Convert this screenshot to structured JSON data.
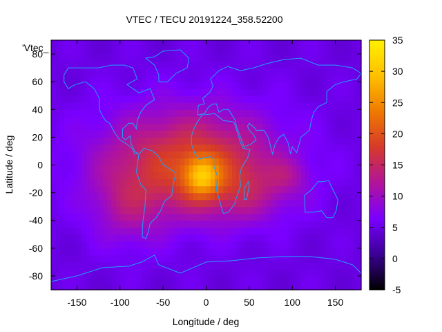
{
  "chart_data": {
    "type": "heatmap",
    "title": "VTEC / TECU 20191224_358.52200",
    "xlabel": "Longitude / deg",
    "ylabel": "Latitude / deg",
    "xlim": [
      -180,
      180
    ],
    "ylim": [
      -90,
      90
    ],
    "x_ticks": [
      -150,
      -100,
      -50,
      0,
      50,
      100,
      150
    ],
    "y_ticks": [
      -80,
      -60,
      -40,
      -20,
      0,
      20,
      40,
      60,
      80
    ],
    "colorbar": {
      "min": -5,
      "max": 35,
      "ticks": [
        -5,
        0,
        5,
        10,
        15,
        20,
        25,
        30,
        35
      ],
      "palette": [
        "#000000",
        "#3b0095",
        "#7a00ff",
        "#b2149a",
        "#d63a2a",
        "#ef7a00",
        "#ffc000",
        "#fff000"
      ]
    },
    "key_label": "'Vtec_",
    "background_value": 5,
    "peak": {
      "lon": -5,
      "lat": -8,
      "value": 33
    },
    "tec_blobs": [
      {
        "lon": -5,
        "lat": -8,
        "sigma_lon": 14,
        "sigma_lat": 10,
        "amp": 12
      },
      {
        "lon": -20,
        "lat": 3,
        "sigma_lon": 70,
        "sigma_lat": 26,
        "amp": 13
      },
      {
        "lon": 35,
        "lat": -18,
        "sigma_lon": 45,
        "sigma_lat": 16,
        "amp": 5
      },
      {
        "lon": -90,
        "lat": -30,
        "sigma_lon": 30,
        "sigma_lat": 20,
        "amp": 5
      },
      {
        "lon": 95,
        "lat": -8,
        "sigma_lon": 15,
        "sigma_lat": 8,
        "amp": 3
      }
    ],
    "colors": {
      "coastline": "#1fa0ff",
      "axis": "#000000"
    }
  }
}
